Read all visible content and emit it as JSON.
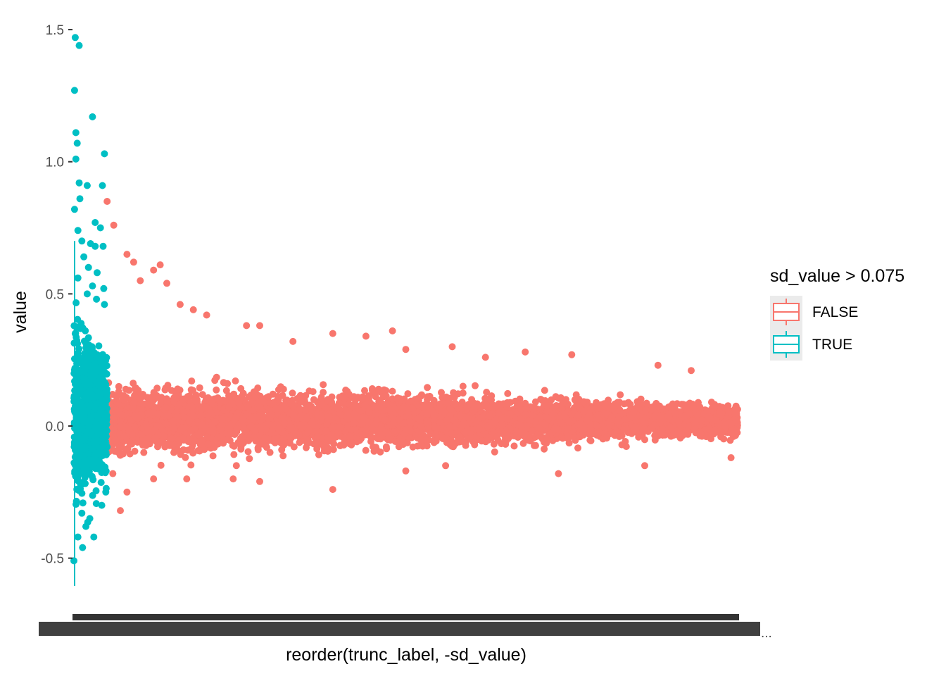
{
  "chart_data": {
    "type": "scatter",
    "title": "",
    "xlabel": "reorder(trunc_label, -sd_value)",
    "ylabel": "value",
    "ylim": [
      -0.6,
      1.5
    ],
    "y_ticks": [
      -0.5,
      0.0,
      0.5,
      1.0,
      1.5
    ],
    "y_tick_labels": [
      "-0.5",
      "0.0",
      "0.5",
      "1.0",
      "1.5"
    ],
    "x_tick_labels_overplotted": true,
    "x_tick_label_tail": "...",
    "grid": false,
    "legend": {
      "title": "sd_value > 0.075",
      "position": "right",
      "entries": [
        {
          "label": "FALSE",
          "color": "#F8766D"
        },
        {
          "label": "TRUE",
          "color": "#00BFC4"
        }
      ]
    },
    "series": [
      {
        "name": "FALSE",
        "color": "#F8766D",
        "x_range": [
          0.05,
          1.0
        ],
        "center": 0.02,
        "spread_start": 0.1,
        "spread_end": 0.045,
        "outliers_high": [
          [
            0.05,
            0.85
          ],
          [
            0.06,
            0.76
          ],
          [
            0.08,
            0.65
          ],
          [
            0.09,
            0.62
          ],
          [
            0.12,
            0.59
          ],
          [
            0.13,
            0.61
          ],
          [
            0.1,
            0.55
          ],
          [
            0.14,
            0.54
          ],
          [
            0.16,
            0.46
          ],
          [
            0.18,
            0.44
          ],
          [
            0.2,
            0.42
          ],
          [
            0.26,
            0.38
          ],
          [
            0.28,
            0.38
          ],
          [
            0.33,
            0.32
          ],
          [
            0.39,
            0.35
          ],
          [
            0.48,
            0.36
          ],
          [
            0.44,
            0.34
          ],
          [
            0.5,
            0.29
          ],
          [
            0.57,
            0.3
          ],
          [
            0.62,
            0.26
          ],
          [
            0.68,
            0.28
          ],
          [
            0.75,
            0.27
          ],
          [
            0.88,
            0.23
          ],
          [
            0.93,
            0.21
          ]
        ],
        "outliers_low": [
          [
            0.07,
            -0.32
          ],
          [
            0.08,
            -0.25
          ],
          [
            0.12,
            -0.2
          ],
          [
            0.17,
            -0.2
          ],
          [
            0.24,
            -0.2
          ],
          [
            0.28,
            -0.21
          ],
          [
            0.39,
            -0.24
          ],
          [
            0.5,
            -0.17
          ],
          [
            0.56,
            -0.15
          ],
          [
            0.73,
            -0.18
          ],
          [
            0.86,
            -0.15
          ],
          [
            0.99,
            -0.12
          ]
        ]
      },
      {
        "name": "TRUE",
        "color": "#00BFC4",
        "x_range": [
          0.0,
          0.05
        ],
        "center": 0.05,
        "spread_start": 0.25,
        "spread_end": 0.16,
        "outliers_high": [
          [
            0.002,
            1.47
          ],
          [
            0.008,
            1.44
          ],
          [
            0.001,
            1.27
          ],
          [
            0.028,
            1.17
          ],
          [
            0.003,
            1.11
          ],
          [
            0.005,
            1.07
          ],
          [
            0.003,
            1.01
          ],
          [
            0.046,
            1.03
          ],
          [
            0.008,
            0.92
          ],
          [
            0.02,
            0.91
          ],
          [
            0.043,
            0.91
          ],
          [
            0.009,
            0.86
          ],
          [
            0.001,
            0.82
          ],
          [
            0.032,
            0.77
          ],
          [
            0.04,
            0.75
          ],
          [
            0.006,
            0.74
          ],
          [
            0.012,
            0.7
          ],
          [
            0.025,
            0.69
          ],
          [
            0.032,
            0.68
          ],
          [
            0.044,
            0.68
          ],
          [
            0.015,
            0.64
          ],
          [
            0.022,
            0.6
          ],
          [
            0.035,
            0.58
          ],
          [
            0.006,
            0.56
          ],
          [
            0.028,
            0.53
          ],
          [
            0.045,
            0.52
          ],
          [
            0.02,
            0.5
          ],
          [
            0.034,
            0.48
          ],
          [
            0.046,
            0.46
          ]
        ],
        "outliers_low": [
          [
            0.0,
            -0.51
          ],
          [
            0.013,
            -0.46
          ],
          [
            0.006,
            -0.42
          ],
          [
            0.03,
            -0.42
          ],
          [
            0.018,
            -0.38
          ],
          [
            0.024,
            -0.35
          ],
          [
            0.042,
            -0.3
          ],
          [
            0.012,
            -0.33
          ],
          [
            0.048,
            -0.25
          ]
        ]
      }
    ]
  }
}
